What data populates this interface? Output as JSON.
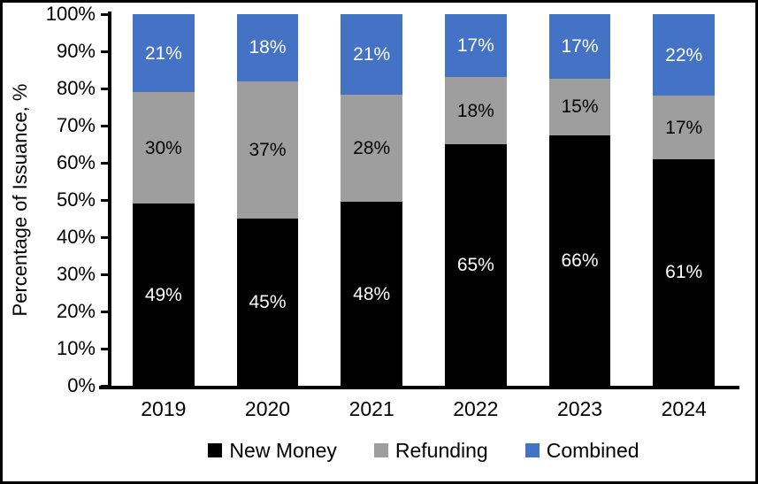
{
  "chart_data": {
    "type": "bar",
    "stacked": true,
    "title": "",
    "xlabel": "",
    "ylabel": "Percentage of Issuance, %",
    "ylim": [
      0,
      100
    ],
    "grid": false,
    "legend_position": "bottom",
    "categories": [
      "2019",
      "2020",
      "2021",
      "2022",
      "2023",
      "2024"
    ],
    "y_tick_labels": [
      "100%",
      "90%",
      "80%",
      "70%",
      "60%",
      "50%",
      "40%",
      "30%",
      "20%",
      "10%",
      "0%"
    ],
    "series": [
      {
        "name": "New Money",
        "color": "#000000",
        "label_color": "#FFFFFF",
        "values": [
          49,
          45,
          48,
          65,
          66,
          61
        ],
        "labels": [
          "49%",
          "45%",
          "48%",
          "65%",
          "66%",
          "61%"
        ]
      },
      {
        "name": "Refunding",
        "color": "#9E9E9E",
        "label_color": "#000000",
        "values": [
          30,
          37,
          28,
          18,
          15,
          17
        ],
        "labels": [
          "30%",
          "37%",
          "28%",
          "18%",
          "15%",
          "17%"
        ]
      },
      {
        "name": "Combined",
        "color": "#4472C4",
        "label_color": "#FFFFFF",
        "values": [
          21,
          18,
          21,
          17,
          17,
          22
        ],
        "labels": [
          "21%",
          "18%",
          "21%",
          "17%",
          "17%",
          "22%"
        ]
      }
    ]
  },
  "layout_hints": {
    "axis_color": "#000000",
    "background_color": "#FFFFFF",
    "border_color": "#000000"
  }
}
